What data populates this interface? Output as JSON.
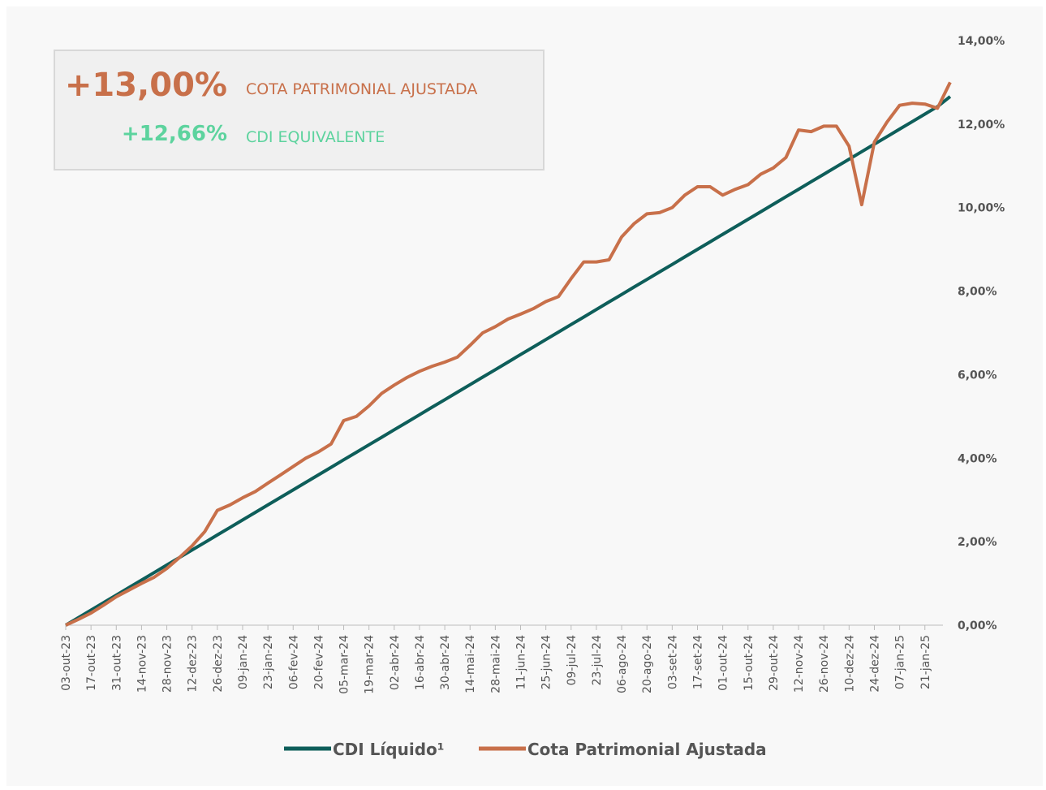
{
  "chart_data": {
    "type": "line",
    "annotations": [
      {
        "value": "+13,00%",
        "text": "COTA PATRIMONIAL AJUSTADA",
        "color": "#c8704a"
      },
      {
        "value": "+12,66%",
        "text": "CDI EQUIVALENTE",
        "color": "#5dd39e"
      }
    ],
    "categories": [
      "03-out-23",
      null,
      "17-out-23",
      null,
      "31-out-23",
      null,
      "14-nov-23",
      null,
      "28-nov-23",
      null,
      "12-dez-23",
      null,
      "26-dez-23",
      null,
      "09-jan-24",
      null,
      "23-jan-24",
      null,
      "06-fev-24",
      null,
      "20-fev-24",
      null,
      "05-mar-24",
      null,
      "19-mar-24",
      null,
      "02-abr-24",
      null,
      "16-abr-24",
      null,
      "30-abr-24",
      null,
      "14-mai-24",
      null,
      "28-mai-24",
      null,
      "11-jun-24",
      null,
      "25-jun-24",
      null,
      "09-jul-24",
      null,
      "23-jul-24",
      null,
      "06-ago-24",
      null,
      "20-ago-24",
      null,
      "03-set-24",
      null,
      "17-set-24",
      null,
      "01-out-24",
      null,
      "15-out-24",
      null,
      "29-out-24",
      null,
      "12-nov-24",
      null,
      "26-nov-24",
      null,
      "10-dez-24",
      null,
      "24-dez-24",
      null,
      "07-jan-25",
      null,
      "21-jan-25",
      null,
      null
    ],
    "series": [
      {
        "name": "CDI Líquido¹",
        "color": "#0e5e5a",
        "values": [
          0,
          0.18,
          0.36,
          0.54,
          0.72,
          0.9,
          1.08,
          1.26,
          1.44,
          1.62,
          1.8,
          1.98,
          2.16,
          2.34,
          2.52,
          2.7,
          2.88,
          3.06,
          3.24,
          3.42,
          3.6,
          3.78,
          3.96,
          4.14,
          4.32,
          4.5,
          4.68,
          4.86,
          5.04,
          5.22,
          5.4,
          5.58,
          5.76,
          5.94,
          6.12,
          6.3,
          6.48,
          6.66,
          6.84,
          7.02,
          7.2,
          7.38,
          7.56,
          7.74,
          7.92,
          8.1,
          8.28,
          8.46,
          8.64,
          8.82,
          9.0,
          9.18,
          9.36,
          9.54,
          9.72,
          9.9,
          10.08,
          10.26,
          10.44,
          10.62,
          10.8,
          10.98,
          11.16,
          11.34,
          11.52,
          11.7,
          11.88,
          12.06,
          12.24,
          12.42,
          12.66
        ]
      },
      {
        "name": "Cota Patrimonial Ajustada",
        "color": "#c8704a",
        "values": [
          0,
          0.14,
          0.29,
          0.48,
          0.68,
          0.84,
          1.0,
          1.15,
          1.36,
          1.62,
          1.9,
          2.24,
          2.75,
          2.88,
          3.05,
          3.2,
          3.4,
          3.6,
          3.8,
          4.0,
          4.15,
          4.34,
          4.9,
          5.0,
          5.25,
          5.55,
          5.75,
          5.93,
          6.08,
          6.2,
          6.3,
          6.42,
          6.7,
          7.0,
          7.15,
          7.33,
          7.45,
          7.58,
          7.75,
          7.87,
          8.3,
          8.7,
          8.7,
          8.75,
          9.3,
          9.62,
          9.85,
          9.88,
          10.0,
          10.3,
          10.5,
          10.5,
          10.3,
          10.44,
          10.55,
          10.8,
          10.95,
          11.2,
          11.86,
          11.82,
          11.95,
          11.95,
          11.47,
          10.07,
          11.57,
          12.05,
          12.45,
          12.5,
          12.48,
          12.38,
          13.0
        ]
      }
    ],
    "ylim": [
      0,
      14
    ],
    "yticks": [
      {
        "value": 0,
        "label": "0,00%"
      },
      {
        "value": 2,
        "label": "2,00%"
      },
      {
        "value": 4,
        "label": "4,00%"
      },
      {
        "value": 6,
        "label": "6,00%"
      },
      {
        "value": 8,
        "label": "8,00%"
      },
      {
        "value": 10,
        "label": "10,00%"
      },
      {
        "value": 12,
        "label": "12,00%"
      },
      {
        "value": 14,
        "label": "14,00%"
      }
    ],
    "grid": false,
    "legend": "bottom"
  }
}
